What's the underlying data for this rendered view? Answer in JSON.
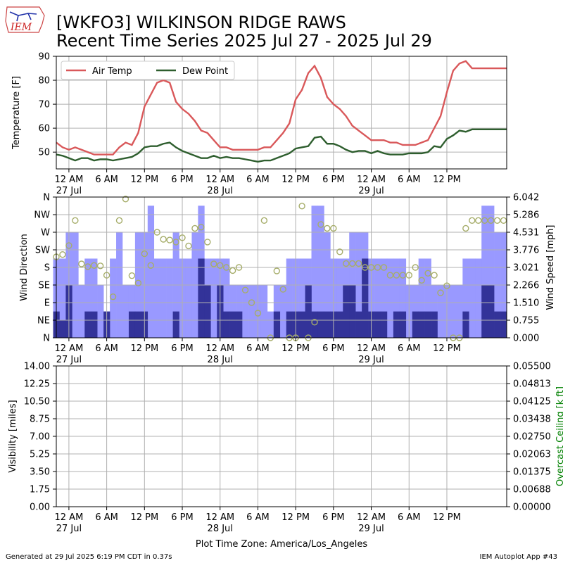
{
  "header": {
    "title_line1": "[WKFO3] WILKINSON RIDGE RAWS",
    "title_line2": "Recent Time Series 2025 Jul 27 - 2025 Jul 29",
    "logo_text": "IEM"
  },
  "footer": {
    "generated": "Generated at 29 Jul 2025 6:19 PM CDT in 0.37s",
    "app": "IEM Autoplot App #43",
    "timezone": "Plot Time Zone: America/Los_Angeles"
  },
  "colors": {
    "air_temp": "#d9585a",
    "dew_point": "#2e5e2e",
    "gust_bar": "#9999ff",
    "speed_bar": "#333399",
    "direction_marker": "#a6ad6a",
    "ceiling_axis": "#008000",
    "grid": "#b0b0b0"
  },
  "time_axis": {
    "tick_labels": [
      "12 AM",
      "6 AM",
      "12 PM",
      "6 PM",
      "12 AM",
      "6 AM",
      "12 PM",
      "6 PM",
      "12 AM",
      "6 AM",
      "12 PM"
    ],
    "date_labels": [
      "27 Jul",
      "28 Jul",
      "29 Jul"
    ]
  },
  "chart_data": [
    {
      "type": "line",
      "ylabel": "Temperature [F]",
      "ylim": [
        43,
        90
      ],
      "yticks": [
        "50",
        "60",
        "70",
        "80",
        "90"
      ],
      "xlim_hours": [
        -2,
        69.5
      ],
      "grid": true,
      "legend": "top-left",
      "series": [
        {
          "name": "Air Temp",
          "hours": [
            -2,
            -1,
            0,
            1,
            2,
            3,
            4,
            5,
            6,
            7,
            8,
            9,
            10,
            11,
            12,
            13,
            14,
            15,
            16,
            17,
            18,
            19,
            20,
            21,
            22,
            23,
            24,
            25,
            26,
            27,
            28,
            29,
            30,
            31,
            32,
            33,
            34,
            35,
            36,
            37,
            38,
            39,
            40,
            41,
            42,
            43,
            44,
            45,
            46,
            47,
            48,
            49,
            50,
            51,
            52,
            53,
            54,
            55,
            56,
            57,
            58,
            59,
            60,
            61,
            62,
            63,
            64,
            65,
            66,
            67,
            68,
            69,
            69.5
          ],
          "values": [
            54,
            52,
            51,
            52,
            51,
            50,
            49,
            49,
            49,
            49,
            52,
            54,
            53,
            58,
            69,
            74,
            79,
            80,
            79,
            71,
            68,
            66,
            63,
            59,
            58,
            55,
            52,
            52,
            51,
            51,
            51,
            51,
            51,
            52,
            52,
            55,
            58,
            62,
            72,
            76,
            83,
            86,
            81,
            73,
            70,
            68,
            65,
            61,
            59,
            57,
            55,
            55,
            55,
            54,
            54,
            53,
            53,
            53,
            54,
            55,
            60,
            65,
            75,
            84,
            87,
            88,
            85,
            85,
            85,
            85,
            85,
            85,
            85
          ]
        },
        {
          "name": "Dew Point",
          "hours": [
            -2,
            -1,
            0,
            1,
            2,
            3,
            4,
            5,
            6,
            7,
            8,
            9,
            10,
            11,
            12,
            13,
            14,
            15,
            16,
            17,
            18,
            19,
            20,
            21,
            22,
            23,
            24,
            25,
            26,
            27,
            28,
            29,
            30,
            31,
            32,
            33,
            34,
            35,
            36,
            37,
            38,
            39,
            40,
            41,
            42,
            43,
            44,
            45,
            46,
            47,
            48,
            49,
            50,
            51,
            52,
            53,
            54,
            55,
            56,
            57,
            58,
            59,
            60,
            61,
            62,
            63,
            64,
            65,
            66,
            67,
            68,
            69,
            69.5
          ],
          "values": [
            49,
            48.5,
            47.5,
            46.5,
            47.5,
            47.5,
            46.5,
            47,
            47,
            46.5,
            47,
            47.5,
            48,
            49.5,
            52,
            52.5,
            52.5,
            53.5,
            54,
            52,
            50.5,
            49.5,
            48.5,
            47.5,
            47.5,
            48.5,
            47.5,
            48,
            47.5,
            47.5,
            47,
            46.5,
            46,
            46.5,
            46.5,
            47.5,
            48.5,
            49.5,
            51.5,
            52,
            52.5,
            56,
            56.5,
            53.5,
            53.5,
            52.5,
            51,
            50,
            50.5,
            50.5,
            49.5,
            50.5,
            49.5,
            49,
            49,
            49,
            49.5,
            49.5,
            49.5,
            50,
            52.5,
            52,
            55.5,
            57,
            59,
            58.5,
            59.5,
            59.5,
            59.5,
            59.5,
            59.5,
            59.5,
            59.5
          ]
        }
      ]
    },
    {
      "type": "bar",
      "ylabel": "Wind Direction",
      "y2label": "Wind Speed [mph]",
      "direction_ticks": [
        "N",
        "NW",
        "W",
        "SW",
        "S",
        "SE",
        "E",
        "NE",
        "N"
      ],
      "speed_ticks": [
        "6.042",
        "5.286",
        "4.531",
        "3.776",
        "3.021",
        "2.266",
        "1.510",
        "0.755",
        "0.000"
      ],
      "speed_range": [
        0,
        6.042
      ],
      "grid": true,
      "series": [
        {
          "name": "Gust",
          "hours": [
            -2,
            -1,
            0,
            1,
            2,
            3,
            4,
            5,
            6,
            7,
            8,
            9,
            10,
            11,
            12,
            13,
            14,
            15,
            16,
            17,
            18,
            19,
            20,
            21,
            22,
            23,
            24,
            25,
            26,
            27,
            28,
            29,
            30,
            31,
            32,
            33,
            34,
            35,
            36,
            37,
            38,
            39,
            40,
            41,
            42,
            43,
            44,
            45,
            46,
            47,
            48,
            49,
            50,
            51,
            52,
            53,
            54,
            55,
            56,
            57,
            58,
            59,
            60,
            61,
            62,
            63,
            64,
            65,
            66,
            67,
            68,
            69
          ],
          "values": [
            3.4,
            3.4,
            4.53,
            4.53,
            2.27,
            3.4,
            3.4,
            2.27,
            1.13,
            3.4,
            4.53,
            2.27,
            2.27,
            4.53,
            4.53,
            5.67,
            3.4,
            3.4,
            3.4,
            4.53,
            3.4,
            3.4,
            4.53,
            5.67,
            3.4,
            3.4,
            3.4,
            3.4,
            2.27,
            2.27,
            2.27,
            2.27,
            2.27,
            2.27,
            1.13,
            2.27,
            2.27,
            3.4,
            3.4,
            3.4,
            3.4,
            5.67,
            5.67,
            4.53,
            3.4,
            3.4,
            3.4,
            4.53,
            4.53,
            4.53,
            3.4,
            3.4,
            3.4,
            3.4,
            3.4,
            3.4,
            2.27,
            2.27,
            3.4,
            3.4,
            2.27,
            2.27,
            2.27,
            2.27,
            2.27,
            3.4,
            3.4,
            3.4,
            5.67,
            5.67,
            4.53,
            4.53
          ]
        },
        {
          "name": "Speed",
          "hours": [
            -2,
            -1,
            0,
            1,
            2,
            3,
            4,
            5,
            6,
            7,
            8,
            9,
            10,
            11,
            12,
            13,
            14,
            15,
            16,
            17,
            18,
            19,
            20,
            21,
            22,
            23,
            24,
            25,
            26,
            27,
            28,
            29,
            30,
            31,
            32,
            33,
            34,
            35,
            36,
            37,
            38,
            39,
            40,
            41,
            42,
            43,
            44,
            45,
            46,
            47,
            48,
            49,
            50,
            51,
            52,
            53,
            54,
            55,
            56,
            57,
            58,
            59,
            60,
            61,
            62,
            63,
            64,
            65,
            66,
            67,
            68,
            69
          ],
          "values": [
            1.13,
            0.76,
            2.27,
            0,
            0,
            1.13,
            1.13,
            0,
            1.13,
            0,
            0,
            0,
            1.13,
            1.13,
            1.13,
            0,
            0,
            0,
            0,
            1.13,
            0,
            0,
            0,
            3.4,
            2.27,
            0,
            2.27,
            1.13,
            1.13,
            1.13,
            0,
            0,
            0,
            0,
            0,
            1.13,
            0,
            1.13,
            1.13,
            1.13,
            2.27,
            1.13,
            1.13,
            1.13,
            1.13,
            1.13,
            2.27,
            2.27,
            1.13,
            3.4,
            1.13,
            1.13,
            1.13,
            0,
            1.13,
            1.13,
            0,
            1.13,
            1.13,
            1.13,
            1.13,
            0,
            0,
            0,
            0,
            1.13,
            0,
            0,
            2.27,
            2.27,
            1.13,
            1.13
          ]
        },
        {
          "name": "Direction",
          "hours": [
            -2,
            -1,
            0,
            1,
            2,
            3,
            4,
            5,
            6,
            7,
            8,
            9,
            10,
            11,
            12,
            13,
            14,
            15,
            16,
            17,
            18,
            19,
            20,
            21,
            22,
            23,
            24,
            25,
            26,
            27,
            28,
            29,
            30,
            31,
            32,
            33,
            34,
            35,
            36,
            37,
            38,
            39,
            40,
            41,
            42,
            43,
            44,
            45,
            46,
            47,
            48,
            49,
            50,
            51,
            52,
            53,
            54,
            55,
            56,
            57,
            58,
            59,
            60,
            61,
            62,
            63,
            64,
            65,
            66,
            67,
            68,
            69
          ],
          "values_deg": [
            207,
            213,
            236,
            300,
            189,
            182,
            185,
            184,
            160,
            105,
            300,
            355,
            159,
            140,
            215,
            185,
            270,
            252,
            250,
            245,
            256,
            235,
            280,
            283,
            245,
            189,
            185,
            180,
            172,
            180,
            122,
            90,
            63,
            300,
            0,
            171,
            124,
            0,
            0,
            337,
            0,
            40,
            290,
            280,
            280,
            220,
            190,
            190,
            190,
            180,
            180,
            180,
            180,
            160,
            160,
            160,
            160,
            180,
            147,
            165,
            160,
            115,
            133,
            0,
            0,
            280,
            300,
            300,
            300,
            300,
            300,
            300
          ]
        }
      ]
    },
    {
      "type": "line",
      "ylabel": "Visibility [miles]",
      "y2label": "Overcast Ceiling [k ft]",
      "yticks": [
        "14.00",
        "12.25",
        "10.50",
        "8.75",
        "7.00",
        "5.25",
        "3.50",
        "1.75",
        "0.00"
      ],
      "y2ticks": [
        "0.05500",
        "0.04813",
        "0.04125",
        "0.03438",
        "0.02750",
        "0.02063",
        "0.01375",
        "0.00688",
        "0.00000"
      ],
      "grid": true
    }
  ]
}
